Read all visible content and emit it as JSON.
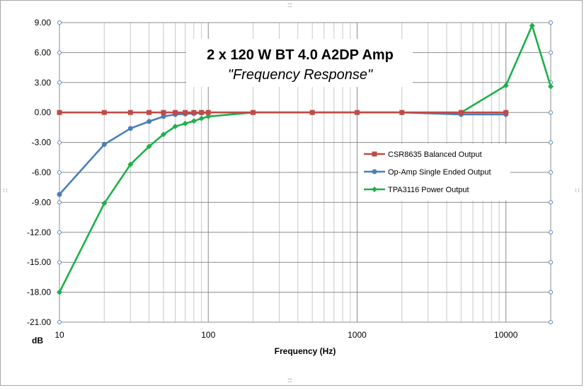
{
  "chart_data": {
    "type": "line",
    "title": "2 x 120 W BT 4.0 A2DP Amp",
    "subtitle": "\"Frequency  Response\"",
    "xlabel": "Frequency (Hz)",
    "ylabel": "dB",
    "x_scale": "log",
    "xlim": [
      10,
      20000
    ],
    "ylim": [
      -21,
      9
    ],
    "y_ticks": [
      9,
      6,
      3,
      0,
      -3,
      -6,
      -9,
      -12,
      -15,
      -18,
      -21
    ],
    "y_tick_labels": [
      "9.00",
      "6.00",
      "3.00",
      "0.00",
      "-3.00",
      "-6.00",
      "-9.00",
      "-12.00",
      "-15.00",
      "-18.00",
      "-21.00"
    ],
    "x_ticks": [
      10,
      100,
      1000,
      10000
    ],
    "x_tick_labels": [
      "10",
      "100",
      "1000",
      "10000"
    ],
    "grid": true,
    "legend_position": "right-middle",
    "series": [
      {
        "name": "CSR8635 Balanced Output",
        "color": "#be4b48",
        "marker": "square",
        "x": [
          10,
          20,
          30,
          40,
          50,
          60,
          70,
          80,
          90,
          100,
          200,
          500,
          1000,
          2000,
          5000,
          10000
        ],
        "y": [
          0,
          0,
          0,
          0,
          0,
          0,
          0,
          0,
          0,
          0,
          0,
          0,
          0,
          0,
          0,
          0
        ]
      },
      {
        "name": "Op-Amp Single Ended Output",
        "color": "#4a7ebb",
        "marker": "circle",
        "x": [
          10,
          20,
          30,
          40,
          50,
          60,
          70,
          80,
          90,
          100,
          200,
          500,
          1000,
          2000,
          5000,
          10000
        ],
        "y": [
          -8.2,
          -3.2,
          -1.6,
          -0.9,
          -0.4,
          -0.2,
          -0.15,
          -0.1,
          -0.05,
          0,
          0,
          0,
          0,
          0,
          -0.2,
          -0.2
        ]
      },
      {
        "name": "TPA3116 Power Output",
        "color": "#1eb04a",
        "marker": "diamond",
        "x": [
          10,
          20,
          30,
          40,
          50,
          60,
          70,
          80,
          90,
          100,
          200,
          500,
          1000,
          2000,
          5000,
          10000,
          15000,
          20000
        ],
        "y": [
          -18.0,
          -9.1,
          -5.2,
          -3.4,
          -2.2,
          -1.4,
          -1.1,
          -0.85,
          -0.6,
          -0.4,
          0,
          0,
          0,
          0,
          0,
          2.7,
          8.7,
          2.6
        ]
      }
    ]
  }
}
